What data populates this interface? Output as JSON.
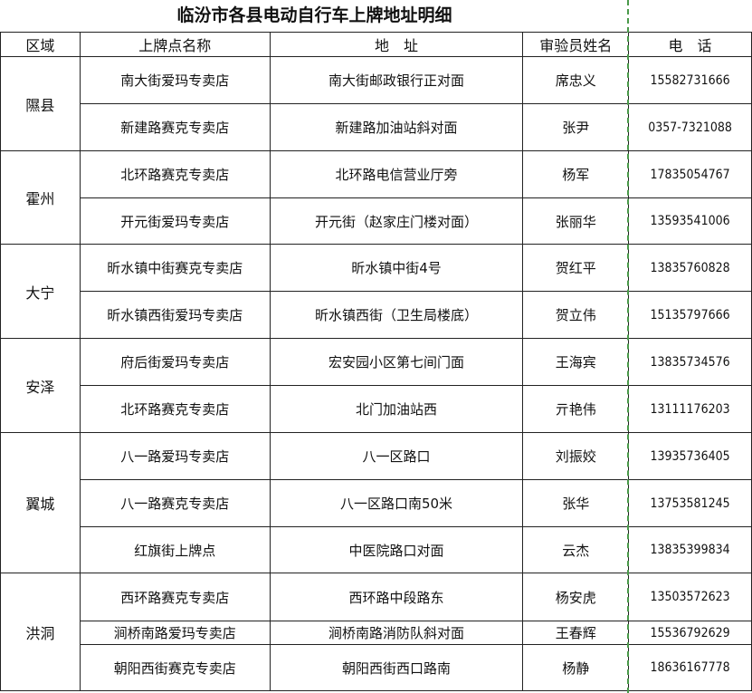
{
  "title": "临汾市各县电动自行车上牌地址明细",
  "headers": [
    "区域",
    "上牌点名称",
    "地　址",
    "审验员姓名",
    "电　话"
  ],
  "colors": {
    "page_break_line": "#4a9a4a",
    "grid": "#222222"
  },
  "groups": [
    {
      "region": "隰县",
      "rows": [
        {
          "name": "南大街爱玛专卖店",
          "address": "南大街邮政银行正对面",
          "inspector": "席忠义",
          "phone": "15582731666"
        },
        {
          "name": "新建路赛克专卖店",
          "address": "新建路加油站斜对面",
          "inspector": "张尹",
          "phone": "0357-7321088"
        }
      ]
    },
    {
      "region": "霍州",
      "rows": [
        {
          "name": "北环路赛克专卖店",
          "address": "北环路电信营业厅旁",
          "inspector": "杨军",
          "phone": "17835054767"
        },
        {
          "name": "开元街爱玛专卖店",
          "address": "开元街（赵家庄门楼对面）",
          "inspector": "张丽华",
          "phone": "13593541006"
        }
      ]
    },
    {
      "region": "大宁",
      "rows": [
        {
          "name": "昕水镇中街赛克专卖店",
          "address": "昕水镇中街4号",
          "inspector": "贺红平",
          "phone": "13835760828"
        },
        {
          "name": "昕水镇西街爱玛专卖店",
          "address": "昕水镇西街（卫生局楼底）",
          "inspector": "贺立伟",
          "phone": "15135797666"
        }
      ]
    },
    {
      "region": "安泽",
      "rows": [
        {
          "name": "府后街爱玛专卖店",
          "address": "宏安园小区第七间门面",
          "inspector": "王海宾",
          "phone": "13835734576"
        },
        {
          "name": "北环路赛克专卖店",
          "address": "北门加油站西",
          "inspector": "亓艳伟",
          "phone": "13111176203"
        }
      ]
    },
    {
      "region": "翼城",
      "rows": [
        {
          "name": "八一路爱玛专卖店",
          "address": "八一区路口",
          "inspector": "刘振姣",
          "phone": "13935736405"
        },
        {
          "name": "八一路赛克专卖店",
          "address": "八一区路口南50米",
          "inspector": "张华",
          "phone": "13753581245"
        },
        {
          "name": "红旗街上牌点",
          "address": "中医院路口对面",
          "inspector": "云杰",
          "phone": "13835399834"
        }
      ]
    },
    {
      "region": "洪洞",
      "rows": [
        {
          "name": "西环路赛克专卖店",
          "address": "西环路中段路东",
          "inspector": "杨安虎",
          "phone": "13503572623"
        },
        {
          "name": "涧桥南路爱玛专卖店",
          "address": "涧桥南路消防队斜对面",
          "inspector": "王春辉",
          "phone": "15536792629"
        },
        {
          "name": "朝阳西街赛克专卖店",
          "address": "朝阳西街西口路南",
          "inspector": "杨静",
          "phone": "18636167778"
        }
      ]
    }
  ]
}
